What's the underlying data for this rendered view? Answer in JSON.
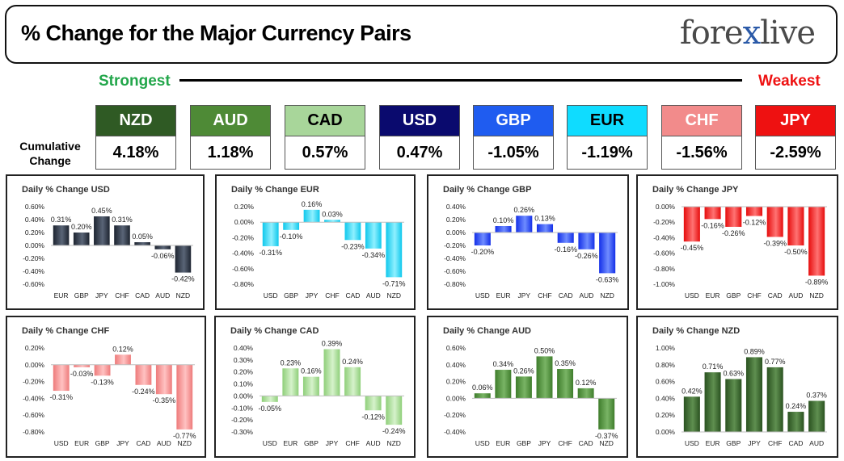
{
  "header": {
    "title": "% Change for the Major Currency Pairs",
    "logo_left": "fore",
    "logo_x": "x",
    "logo_right": "live"
  },
  "labels": {
    "strongest": "Strongest",
    "weakest": "Weakest",
    "cumulative": "Cumulative Change"
  },
  "currencies": [
    {
      "code": "NZD",
      "value": "4.18%",
      "color": "#2f5a24",
      "text_color": "#ffffff"
    },
    {
      "code": "AUD",
      "value": "1.18%",
      "color": "#4e8a36",
      "text_color": "#ffffff"
    },
    {
      "code": "CAD",
      "value": "0.57%",
      "color": "#a8d69a",
      "text_color": "#000000"
    },
    {
      "code": "USD",
      "value": "0.47%",
      "color": "#0a0a6e",
      "text_color": "#ffffff"
    },
    {
      "code": "GBP",
      "value": "-1.05%",
      "color": "#1f5cf0",
      "text_color": "#ffffff"
    },
    {
      "code": "EUR",
      "value": "-1.19%",
      "color": "#0fdcff",
      "text_color": "#000000"
    },
    {
      "code": "CHF",
      "value": "-1.56%",
      "color": "#f28b8b",
      "text_color": "#ffffff"
    },
    {
      "code": "JPY",
      "value": "-2.59%",
      "color": "#ee1111",
      "text_color": "#ffffff"
    }
  ],
  "chart_data": [
    {
      "type": "bar",
      "title": "Daily % Change USD",
      "categories": [
        "EUR",
        "GBP",
        "JPY",
        "CHF",
        "CAD",
        "AUD",
        "NZD"
      ],
      "values": [
        0.31,
        0.2,
        0.45,
        0.31,
        0.05,
        -0.06,
        -0.42
      ],
      "ylim": [
        -0.6,
        0.6
      ],
      "step": 0.2,
      "labels": [
        "0.31%",
        "0.20%",
        "0.45%",
        "0.31%",
        "0.05%",
        "-0.06%",
        "-0.42%"
      ],
      "ticks": [
        "0.60%",
        "0.40%",
        "0.20%",
        "0.00%",
        "-0.20%",
        "-0.40%",
        "-0.60%"
      ],
      "color": "#1d2430",
      "shade": "#5a6577"
    },
    {
      "type": "bar",
      "title": "Daily % Change EUR",
      "categories": [
        "USD",
        "GBP",
        "JPY",
        "CHF",
        "CAD",
        "AUD",
        "NZD"
      ],
      "values": [
        -0.31,
        -0.1,
        0.16,
        0.03,
        -0.23,
        -0.34,
        -0.71
      ],
      "ylim": [
        -0.8,
        0.2
      ],
      "step": 0.2,
      "labels": [
        "-0.31%",
        "-0.10%",
        "0.16%",
        "0.03%",
        "-0.23%",
        "-0.34%",
        "-0.71%"
      ],
      "ticks": [
        "0.20%",
        "0.00%",
        "-0.20%",
        "-0.40%",
        "-0.60%",
        "-0.80%"
      ],
      "color": "#10c8ec",
      "shade": "#8ff0ff"
    },
    {
      "type": "bar",
      "title": "Daily % Change GBP",
      "categories": [
        "USD",
        "EUR",
        "JPY",
        "CHF",
        "CAD",
        "AUD",
        "NZD"
      ],
      "values": [
        -0.2,
        0.1,
        0.26,
        0.13,
        -0.16,
        -0.26,
        -0.63
      ],
      "ylim": [
        -0.8,
        0.4
      ],
      "step": 0.2,
      "labels": [
        "-0.20%",
        "0.10%",
        "0.26%",
        "0.13%",
        "-0.16%",
        "-0.26%",
        "-0.63%"
      ],
      "ticks": [
        "0.40%",
        "0.20%",
        "0.00%",
        "-0.20%",
        "-0.40%",
        "-0.60%",
        "-0.80%"
      ],
      "color": "#1430e8",
      "shade": "#6f8cff"
    },
    {
      "type": "bar",
      "title": "Daily % Change JPY",
      "categories": [
        "USD",
        "EUR",
        "GBP",
        "CHF",
        "CAD",
        "AUD",
        "NZD"
      ],
      "values": [
        -0.45,
        -0.16,
        -0.26,
        -0.12,
        -0.39,
        -0.5,
        -0.89
      ],
      "ylim": [
        -1.0,
        0.0
      ],
      "step": 0.2,
      "labels": [
        "-0.45%",
        "-0.16%",
        "-0.26%",
        "-0.12%",
        "-0.39%",
        "-0.50%",
        "-0.89%"
      ],
      "ticks": [
        "0.00%",
        "-0.20%",
        "-0.40%",
        "-0.60%",
        "-0.80%",
        "-1.00%"
      ],
      "color": "#e60d0d",
      "shade": "#ff7373"
    },
    {
      "type": "bar",
      "title": "Daily % Change CHF",
      "categories": [
        "USD",
        "EUR",
        "GBP",
        "JPY",
        "CAD",
        "AUD",
        "NZD"
      ],
      "values": [
        -0.31,
        -0.03,
        -0.13,
        0.12,
        -0.24,
        -0.35,
        -0.77
      ],
      "ylim": [
        -0.8,
        0.2
      ],
      "step": 0.2,
      "labels": [
        "-0.31%",
        "-0.03%",
        "-0.13%",
        "0.12%",
        "-0.24%",
        "-0.35%",
        "-0.77%"
      ],
      "ticks": [
        "0.20%",
        "0.00%",
        "-0.20%",
        "-0.40%",
        "-0.60%",
        "-0.80%"
      ],
      "color": "#ee7b7b",
      "shade": "#ffc2c2"
    },
    {
      "type": "bar",
      "title": "Daily % Change CAD",
      "categories": [
        "USD",
        "EUR",
        "GBP",
        "JPY",
        "CHF",
        "AUD",
        "NZD"
      ],
      "values": [
        -0.05,
        0.23,
        0.16,
        0.39,
        0.24,
        -0.12,
        -0.24
      ],
      "ylim": [
        -0.3,
        0.4
      ],
      "step": 0.1,
      "labels": [
        "-0.05%",
        "0.23%",
        "0.16%",
        "0.39%",
        "0.24%",
        "-0.12%",
        "-0.24%"
      ],
      "ticks": [
        "0.40%",
        "0.30%",
        "0.20%",
        "0.10%",
        "0.00%",
        "-0.10%",
        "-0.20%",
        "-0.30%"
      ],
      "color": "#8fcf7a",
      "shade": "#d6f2cb"
    },
    {
      "type": "bar",
      "title": "Daily % Change AUD",
      "categories": [
        "USD",
        "EUR",
        "GBP",
        "JPY",
        "CHF",
        "CAD",
        "NZD"
      ],
      "values": [
        0.06,
        0.34,
        0.26,
        0.5,
        0.35,
        0.12,
        -0.37
      ],
      "ylim": [
        -0.4,
        0.6
      ],
      "step": 0.2,
      "labels": [
        "0.06%",
        "0.34%",
        "0.26%",
        "0.50%",
        "0.35%",
        "0.12%",
        "-0.37%"
      ],
      "ticks": [
        "0.60%",
        "0.40%",
        "0.20%",
        "0.00%",
        "-0.20%",
        "-0.40%"
      ],
      "color": "#3f7d2c",
      "shade": "#79b465"
    },
    {
      "type": "bar",
      "title": "Daily % Change NZD",
      "categories": [
        "USD",
        "EUR",
        "GBP",
        "JPY",
        "CHF",
        "CAD",
        "AUD"
      ],
      "values": [
        0.42,
        0.71,
        0.63,
        0.89,
        0.77,
        0.24,
        0.37
      ],
      "ylim": [
        0.0,
        1.0
      ],
      "step": 0.2,
      "labels": [
        "0.42%",
        "0.71%",
        "0.63%",
        "0.89%",
        "0.77%",
        "0.24%",
        "0.37%"
      ],
      "ticks": [
        "1.00%",
        "0.80%",
        "0.60%",
        "0.40%",
        "0.20%",
        "0.00%"
      ],
      "color": "#2a5220",
      "shade": "#5f8f50"
    }
  ]
}
